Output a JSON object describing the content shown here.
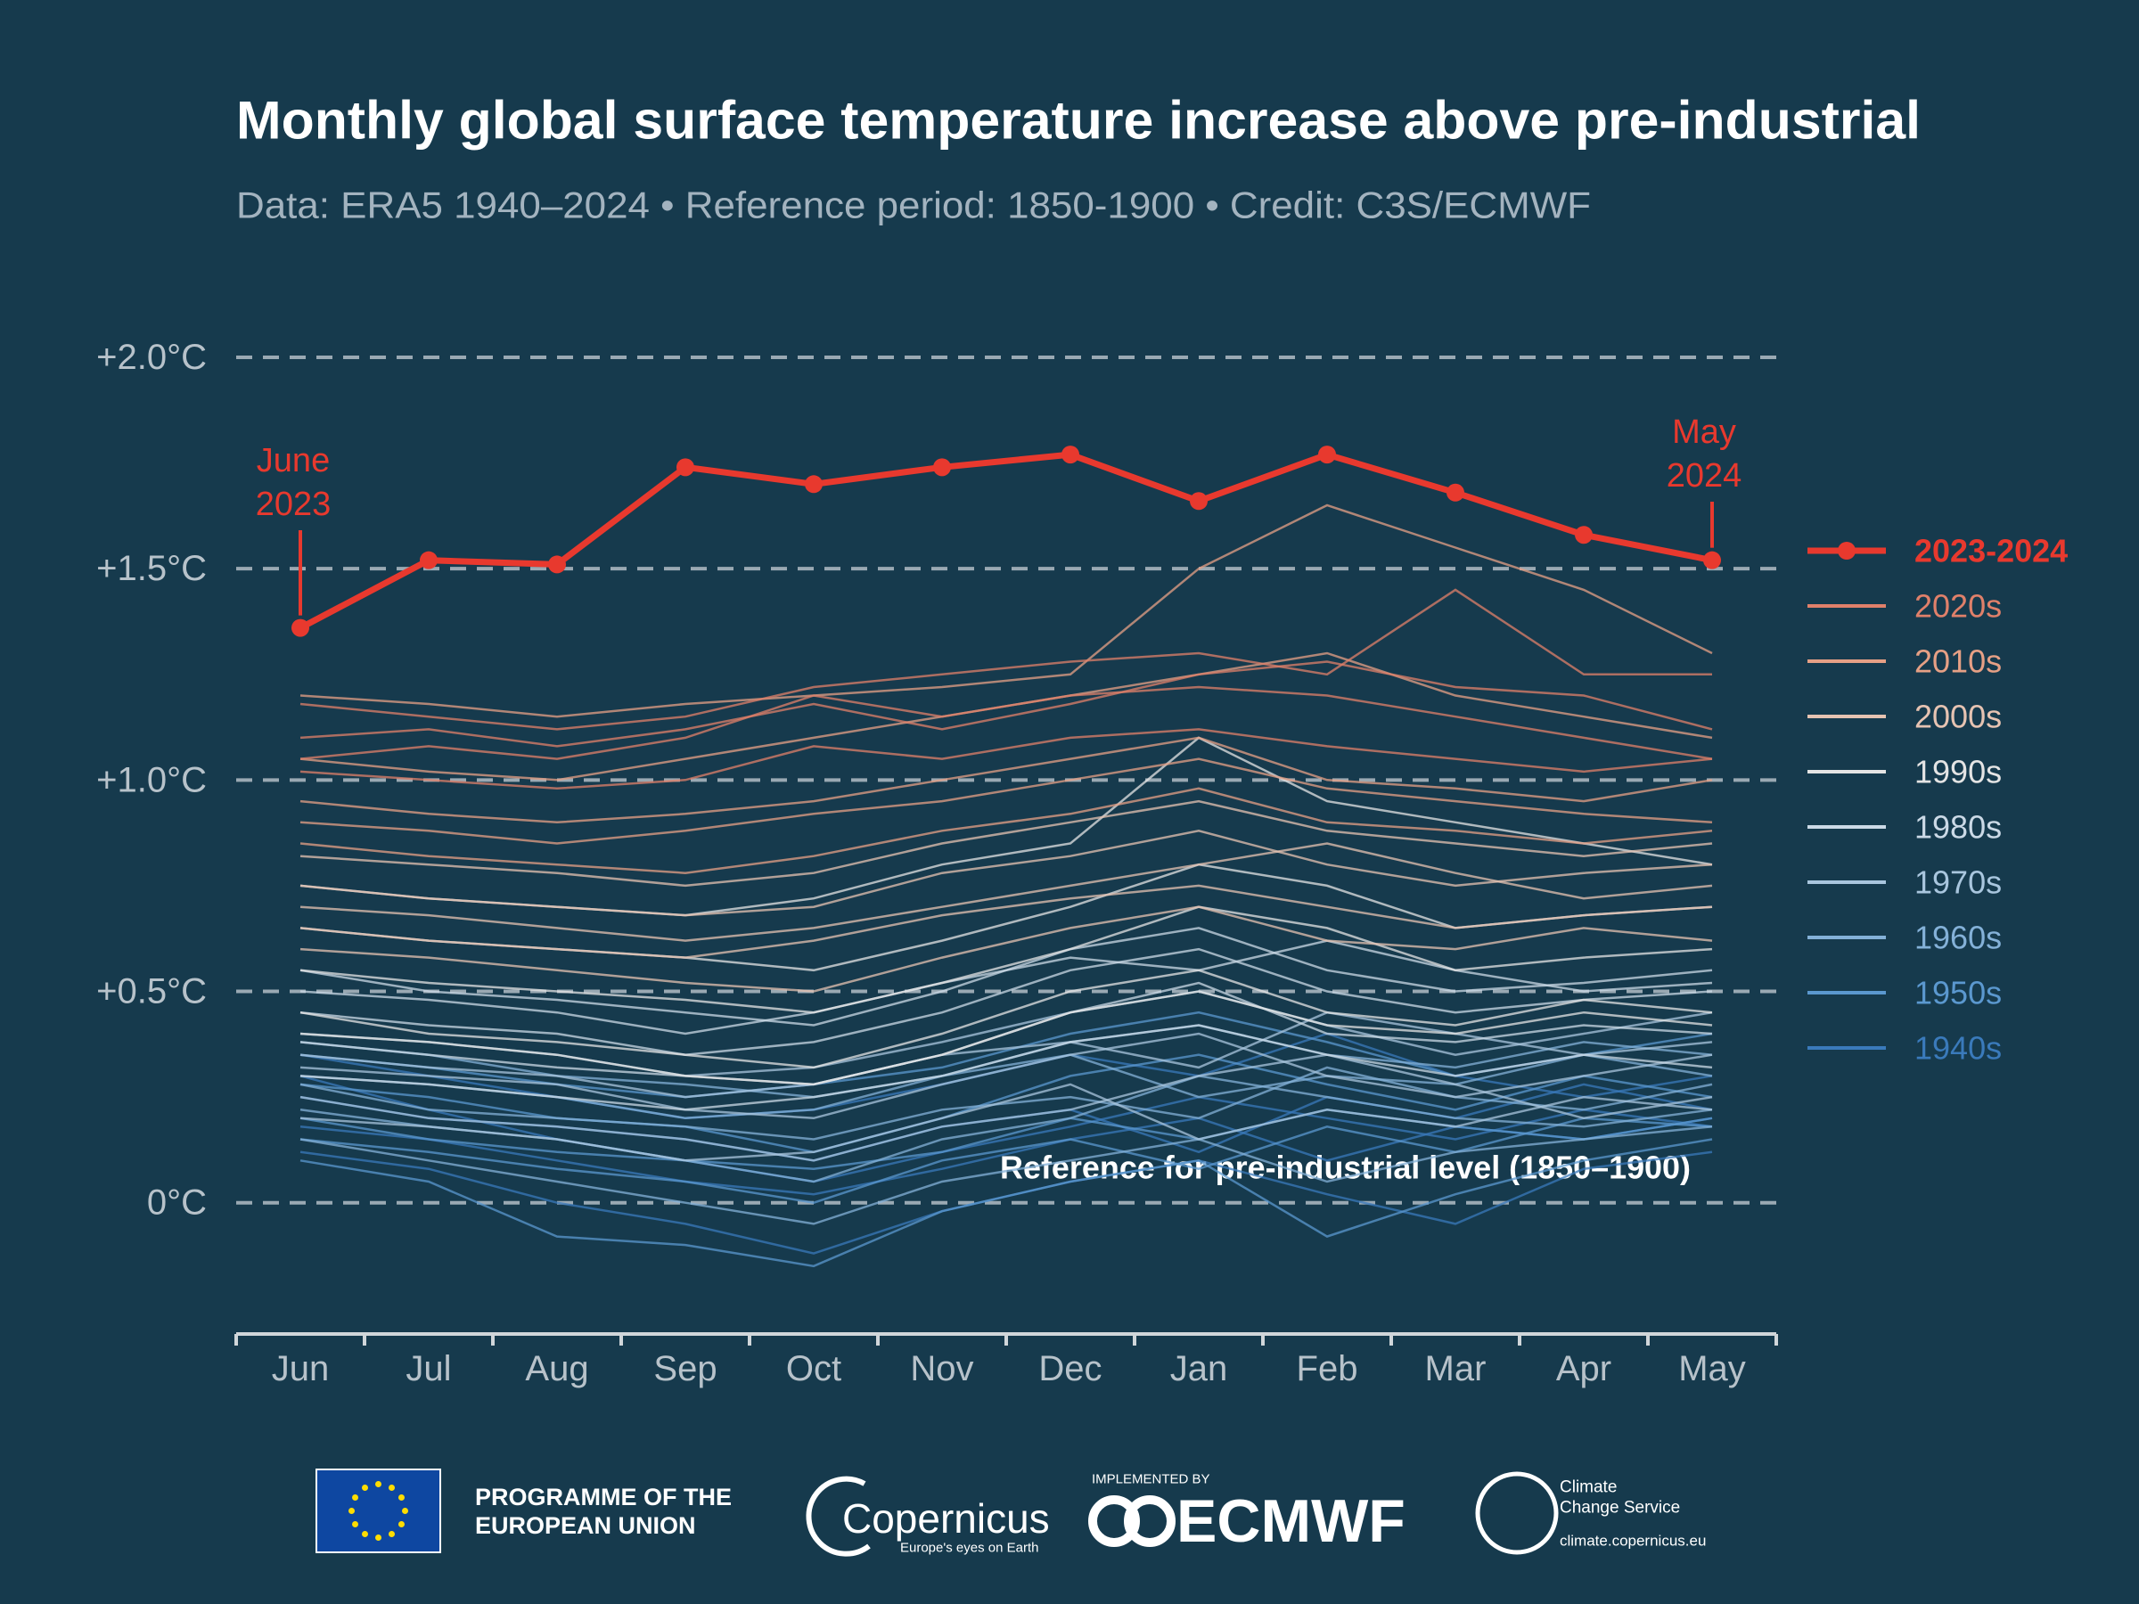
{
  "chart_data": {
    "type": "line",
    "title": "Monthly global surface temperature increase above pre-industrial",
    "subtitle": "Data: ERA5 1940–2024  •  Reference period: 1850-1900  •  Credit: C3S/ECMWF",
    "categories": [
      "Jun",
      "Jul",
      "Aug",
      "Sep",
      "Oct",
      "Nov",
      "Dec",
      "Jan",
      "Feb",
      "Mar",
      "Apr",
      "May"
    ],
    "ylim": [
      -0.3,
      2.0
    ],
    "yticks": [
      {
        "value": 0,
        "label": "0°C"
      },
      {
        "value": 0.5,
        "label": "+0.5°C"
      },
      {
        "value": 1.0,
        "label": "+1.0°C"
      },
      {
        "value": 1.5,
        "label": "+1.5°C"
      },
      {
        "value": 2.0,
        "label": "+2.0°C"
      }
    ],
    "grid": true,
    "legend": "right",
    "series": [
      {
        "name": "2023-2024",
        "color": "#e8392e",
        "values": [
          1.36,
          1.52,
          1.51,
          1.74,
          1.7,
          1.74,
          1.77,
          1.66,
          1.77,
          1.68,
          1.58,
          1.52
        ]
      },
      {
        "name": "2020s",
        "color": "#e0806a",
        "lines": [
          [
            1.18,
            1.15,
            1.12,
            1.15,
            1.22,
            1.25,
            1.28,
            1.3,
            1.25,
            1.45,
            1.25,
            1.25
          ],
          [
            1.05,
            1.08,
            1.05,
            1.1,
            1.2,
            1.15,
            1.2,
            1.22,
            1.2,
            1.15,
            1.1,
            1.05
          ],
          [
            1.1,
            1.12,
            1.08,
            1.12,
            1.18,
            1.12,
            1.18,
            1.25,
            1.28,
            1.22,
            1.2,
            1.12
          ],
          [
            1.02,
            1.0,
            0.98,
            1.0,
            1.08,
            1.05,
            1.1,
            1.12,
            1.08,
            1.05,
            1.02,
            1.05
          ]
        ]
      },
      {
        "name": "2010s",
        "color": "#e6a085",
        "lines": [
          [
            0.9,
            0.88,
            0.85,
            0.88,
            0.92,
            0.95,
            1.0,
            1.05,
            0.98,
            0.95,
            0.92,
            0.9
          ],
          [
            1.05,
            1.02,
            1.0,
            1.05,
            1.1,
            1.15,
            1.2,
            1.25,
            1.3,
            1.2,
            1.15,
            1.1
          ],
          [
            0.85,
            0.82,
            0.8,
            0.78,
            0.82,
            0.88,
            0.92,
            0.98,
            0.9,
            0.88,
            0.85,
            0.88
          ],
          [
            1.2,
            1.18,
            1.15,
            1.18,
            1.2,
            1.22,
            1.25,
            1.5,
            1.65,
            1.55,
            1.45,
            1.3
          ],
          [
            0.95,
            0.92,
            0.9,
            0.92,
            0.95,
            1.0,
            1.05,
            1.1,
            1.0,
            0.98,
            0.95,
            1.0
          ]
        ]
      },
      {
        "name": "2000s",
        "color": "#e6c3b2",
        "lines": [
          [
            0.65,
            0.62,
            0.6,
            0.58,
            0.62,
            0.68,
            0.72,
            0.75,
            0.7,
            0.65,
            0.68,
            0.7
          ],
          [
            0.75,
            0.72,
            0.7,
            0.68,
            0.7,
            0.78,
            0.82,
            0.88,
            0.8,
            0.75,
            0.78,
            0.8
          ],
          [
            0.7,
            0.68,
            0.65,
            0.62,
            0.65,
            0.7,
            0.75,
            0.8,
            0.85,
            0.78,
            0.72,
            0.75
          ],
          [
            0.82,
            0.8,
            0.78,
            0.75,
            0.78,
            0.85,
            0.9,
            0.95,
            0.88,
            0.85,
            0.82,
            0.85
          ],
          [
            0.6,
            0.58,
            0.55,
            0.52,
            0.5,
            0.58,
            0.65,
            0.7,
            0.62,
            0.6,
            0.65,
            0.62
          ]
        ]
      },
      {
        "name": "1990s",
        "color": "#e4e4e4",
        "lines": [
          [
            0.55,
            0.52,
            0.5,
            0.48,
            0.45,
            0.52,
            0.6,
            0.7,
            0.65,
            0.55,
            0.58,
            0.6
          ],
          [
            0.45,
            0.4,
            0.38,
            0.35,
            0.32,
            0.4,
            0.5,
            0.55,
            0.45,
            0.42,
            0.48,
            0.45
          ],
          [
            0.65,
            0.62,
            0.6,
            0.58,
            0.55,
            0.62,
            0.7,
            0.8,
            0.75,
            0.65,
            0.68,
            0.7
          ],
          [
            0.4,
            0.38,
            0.35,
            0.3,
            0.28,
            0.35,
            0.45,
            0.5,
            0.42,
            0.4,
            0.45,
            0.42
          ],
          [
            0.75,
            0.72,
            0.7,
            0.68,
            0.72,
            0.8,
            0.85,
            1.1,
            0.95,
            0.9,
            0.85,
            0.8
          ]
        ]
      },
      {
        "name": "1980s",
        "color": "#cbd9e6",
        "lines": [
          [
            0.45,
            0.42,
            0.4,
            0.35,
            0.38,
            0.45,
            0.55,
            0.6,
            0.5,
            0.45,
            0.48,
            0.5
          ],
          [
            0.38,
            0.35,
            0.32,
            0.3,
            0.28,
            0.35,
            0.45,
            0.52,
            0.4,
            0.38,
            0.42,
            0.4
          ],
          [
            0.55,
            0.5,
            0.48,
            0.45,
            0.42,
            0.5,
            0.6,
            0.65,
            0.55,
            0.5,
            0.52,
            0.55
          ],
          [
            0.3,
            0.28,
            0.25,
            0.22,
            0.25,
            0.3,
            0.38,
            0.42,
            0.35,
            0.3,
            0.35,
            0.32
          ],
          [
            0.5,
            0.48,
            0.45,
            0.4,
            0.45,
            0.52,
            0.58,
            0.55,
            0.62,
            0.55,
            0.5,
            0.52
          ]
        ]
      },
      {
        "name": "1970s",
        "color": "#a9c6de",
        "lines": [
          [
            0.32,
            0.3,
            0.28,
            0.22,
            0.2,
            0.28,
            0.35,
            0.4,
            0.3,
            0.25,
            0.3,
            0.35
          ],
          [
            0.2,
            0.18,
            0.15,
            0.1,
            0.12,
            0.2,
            0.28,
            0.15,
            0.22,
            0.18,
            0.25,
            0.22
          ],
          [
            0.4,
            0.38,
            0.35,
            0.3,
            0.32,
            0.38,
            0.45,
            0.5,
            0.42,
            0.35,
            0.4,
            0.45
          ],
          [
            0.25,
            0.2,
            0.18,
            0.15,
            0.1,
            0.18,
            0.22,
            0.3,
            0.35,
            0.28,
            0.2,
            0.25
          ],
          [
            0.35,
            0.32,
            0.3,
            0.25,
            0.28,
            0.35,
            0.38,
            0.32,
            0.45,
            0.4,
            0.35,
            0.38
          ]
        ]
      },
      {
        "name": "1960s",
        "color": "#84b1d8",
        "lines": [
          [
            0.3,
            0.28,
            0.25,
            0.2,
            0.22,
            0.3,
            0.35,
            0.25,
            0.3,
            0.28,
            0.35,
            0.3
          ],
          [
            0.22,
            0.18,
            0.15,
            0.1,
            0.05,
            0.15,
            0.2,
            0.3,
            0.25,
            0.2,
            0.18,
            0.22
          ],
          [
            0.38,
            0.35,
            0.3,
            0.28,
            0.25,
            0.3,
            0.38,
            0.42,
            0.35,
            0.32,
            0.38,
            0.35
          ],
          [
            0.15,
            0.1,
            0.05,
            0.0,
            -0.05,
            0.05,
            0.1,
            0.15,
            0.05,
            0.12,
            0.15,
            0.18
          ],
          [
            0.28,
            0.22,
            0.2,
            0.18,
            0.15,
            0.22,
            0.25,
            0.2,
            0.32,
            0.25,
            0.22,
            0.28
          ]
        ]
      },
      {
        "name": "1950s",
        "color": "#5b98cf",
        "lines": [
          [
            0.1,
            0.05,
            -0.08,
            -0.1,
            -0.15,
            -0.02,
            0.05,
            0.1,
            -0.08,
            0.02,
            0.1,
            0.15
          ],
          [
            0.28,
            0.25,
            0.2,
            0.18,
            0.12,
            0.2,
            0.3,
            0.35,
            0.28,
            0.22,
            0.3,
            0.25
          ],
          [
            0.2,
            0.15,
            0.12,
            0.1,
            0.08,
            0.12,
            0.2,
            0.15,
            0.22,
            0.18,
            0.15,
            0.2
          ],
          [
            0.35,
            0.32,
            0.28,
            0.25,
            0.28,
            0.32,
            0.4,
            0.45,
            0.38,
            0.3,
            0.35,
            0.4
          ],
          [
            0.15,
            0.12,
            0.08,
            0.05,
            0.0,
            0.1,
            0.15,
            0.08,
            0.18,
            0.12,
            0.2,
            0.18
          ]
        ]
      },
      {
        "name": "1940s",
        "color": "#3a7abb",
        "lines": [
          [
            0.3,
            0.22,
            0.15,
            0.1,
            0.05,
            0.12,
            0.18,
            0.25,
            0.2,
            0.15,
            0.22,
            0.18
          ],
          [
            0.12,
            0.08,
            0.0,
            -0.05,
            -0.12,
            -0.02,
            0.05,
            0.1,
            0.02,
            -0.05,
            0.08,
            0.12
          ],
          [
            0.35,
            0.3,
            0.25,
            0.2,
            0.22,
            0.28,
            0.35,
            0.3,
            0.4,
            0.3,
            0.25,
            0.3
          ],
          [
            0.18,
            0.15,
            0.1,
            0.05,
            0.02,
            0.08,
            0.15,
            0.2,
            0.1,
            0.18,
            0.15,
            0.2
          ],
          [
            0.25,
            0.2,
            0.18,
            0.15,
            0.1,
            0.18,
            0.22,
            0.12,
            0.25,
            0.2,
            0.28,
            0.22
          ]
        ]
      }
    ],
    "annotations": {
      "start": [
        "June",
        "2023"
      ],
      "end": [
        "May",
        "2024"
      ],
      "reference": "Reference for pre-industrial level (1850–1900)"
    }
  },
  "footer": {
    "eu": [
      "PROGRAMME OF THE",
      "EUROPEAN UNION"
    ],
    "copernicus": "Copernicus",
    "copernicus_tagline": "Europe's eyes on Earth",
    "implemented": "IMPLEMENTED BY",
    "ecmwf": "ECMWF",
    "c3s": [
      "Climate",
      "Change Service"
    ],
    "url": "climate.copernicus.eu"
  }
}
